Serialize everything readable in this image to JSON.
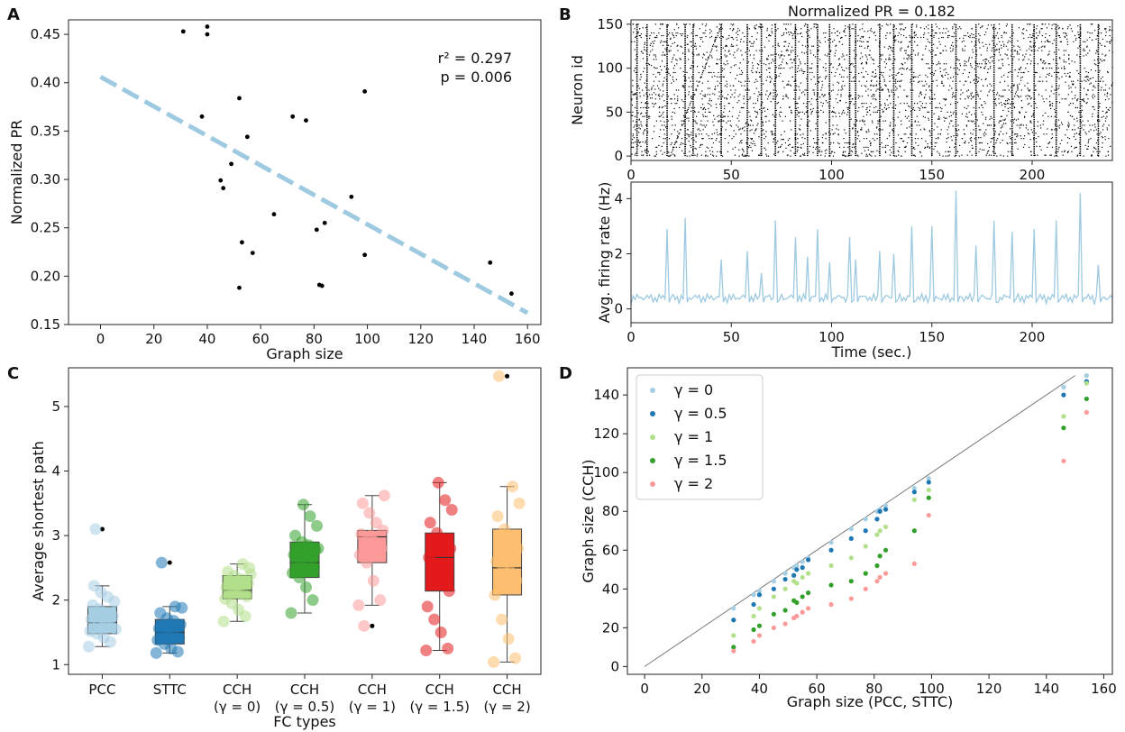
{
  "panels": {
    "a": "A",
    "b": "B",
    "c": "C",
    "d": "D"
  },
  "chart_data": [
    {
      "id": "A",
      "type": "scatter",
      "xlabel": "Graph size",
      "ylabel": "Normalized PR",
      "xlim": [
        -12,
        165
      ],
      "ylim": [
        0.15,
        0.465
      ],
      "xticks": [
        0,
        20,
        40,
        60,
        80,
        100,
        120,
        140,
        160
      ],
      "yticks": [
        0.15,
        0.2,
        0.25,
        0.3,
        0.35,
        0.4,
        0.45
      ],
      "annotation_r2": "r² = 0.297",
      "annotation_p": "p = 0.006",
      "fit_line": {
        "x": [
          0,
          160
        ],
        "y": [
          0.406,
          0.162
        ],
        "color": "#9ecae1"
      },
      "points": [
        [
          31,
          0.453
        ],
        [
          40,
          0.458
        ],
        [
          40,
          0.45
        ],
        [
          38,
          0.365
        ],
        [
          52,
          0.384
        ],
        [
          55,
          0.344
        ],
        [
          49,
          0.316
        ],
        [
          45,
          0.299
        ],
        [
          46,
          0.291
        ],
        [
          53,
          0.235
        ],
        [
          57,
          0.224
        ],
        [
          52,
          0.188
        ],
        [
          65,
          0.264
        ],
        [
          72,
          0.365
        ],
        [
          77,
          0.361
        ],
        [
          81,
          0.248
        ],
        [
          84,
          0.255
        ],
        [
          82,
          0.191
        ],
        [
          83,
          0.19
        ],
        [
          94,
          0.282
        ],
        [
          99,
          0.391
        ],
        [
          99,
          0.222
        ],
        [
          146,
          0.214
        ],
        [
          154,
          0.182
        ]
      ]
    },
    {
      "id": "B1",
      "type": "raster",
      "title": "Normalized PR = 0.182",
      "ylabel": "Neuron id",
      "xlim": [
        0,
        240
      ],
      "ylim": [
        -5,
        155
      ],
      "xticks": [
        0,
        50,
        100,
        150,
        200
      ],
      "yticks": [
        0,
        50,
        100,
        150
      ],
      "burst_times": [
        3,
        8,
        18,
        27,
        31,
        45,
        58,
        65,
        72,
        82,
        88,
        93,
        99,
        109,
        112,
        124,
        131,
        140,
        150,
        162,
        172,
        181,
        190,
        201,
        212,
        224,
        233
      ]
    },
    {
      "id": "B2",
      "type": "line",
      "xlabel": "Time (sec.)",
      "ylabel": "Avg. firing rate (Hz)",
      "xlim": [
        0,
        240
      ],
      "ylim": [
        -0.5,
        4.6
      ],
      "xticks": [
        0,
        50,
        100,
        150,
        200
      ],
      "yticks": [
        0,
        2,
        4
      ],
      "color": "#9ecae1",
      "peaks": [
        [
          18,
          2.9
        ],
        [
          27,
          3.3
        ],
        [
          45,
          1.8
        ],
        [
          58,
          2.1
        ],
        [
          65,
          1.3
        ],
        [
          72,
          3.2
        ],
        [
          82,
          2.6
        ],
        [
          88,
          1.9
        ],
        [
          93,
          2.9
        ],
        [
          99,
          1.7
        ],
        [
          109,
          2.6
        ],
        [
          112,
          1.8
        ],
        [
          124,
          2.1
        ],
        [
          131,
          2.0
        ],
        [
          140,
          3.0
        ],
        [
          150,
          3.0
        ],
        [
          162,
          4.3
        ],
        [
          172,
          2.3
        ],
        [
          181,
          3.2
        ],
        [
          190,
          2.8
        ],
        [
          201,
          2.9
        ],
        [
          212,
          3.2
        ],
        [
          224,
          4.2
        ],
        [
          233,
          1.6
        ]
      ]
    },
    {
      "id": "C",
      "type": "box",
      "ylabel": "Average shortest path",
      "xlabel": "FC types",
      "ylim": [
        0.85,
        5.6
      ],
      "yticks": [
        1,
        2,
        3,
        4,
        5
      ],
      "categories": [
        {
          "l1": "PCC",
          "l2": "",
          "color": "#a6cee3",
          "q1": 1.48,
          "med": 1.65,
          "q3": 1.9,
          "lo": 1.28,
          "hi": 2.22,
          "out": [
            3.1
          ],
          "pts": [
            1.28,
            1.35,
            1.42,
            1.48,
            1.52,
            1.58,
            1.62,
            1.66,
            1.7,
            1.75,
            1.8,
            1.86,
            1.92,
            1.98,
            2.05,
            2.12,
            2.22,
            1.55,
            1.6,
            1.72,
            3.1
          ]
        },
        {
          "l1": "STTC",
          "l2": "",
          "color": "#1f78b4",
          "q1": 1.32,
          "med": 1.5,
          "q3": 1.7,
          "lo": 1.18,
          "hi": 1.9,
          "out": [
            2.58
          ],
          "pts": [
            1.18,
            1.2,
            1.25,
            1.32,
            1.38,
            1.42,
            1.48,
            1.52,
            1.56,
            1.62,
            1.68,
            1.72,
            1.8,
            1.88,
            1.9,
            1.45,
            2.58
          ]
        },
        {
          "l1": "CCH",
          "l2": "(γ = 0)",
          "color": "#b2df8a",
          "q1": 2.02,
          "med": 2.15,
          "q3": 2.38,
          "lo": 1.67,
          "hi": 2.56,
          "out": [],
          "pts": [
            1.67,
            1.75,
            1.85,
            1.95,
            2.02,
            2.06,
            2.1,
            2.15,
            2.2,
            2.26,
            2.32,
            2.38,
            2.44,
            2.5,
            2.56,
            2.12,
            2.3,
            2.4
          ]
        },
        {
          "l1": "CCH",
          "l2": "(γ = 0.5)",
          "color": "#33a02c",
          "q1": 2.35,
          "med": 2.58,
          "q3": 2.9,
          "lo": 1.8,
          "hi": 3.48,
          "out": [],
          "pts": [
            1.8,
            2.0,
            2.2,
            2.35,
            2.42,
            2.5,
            2.58,
            2.64,
            2.7,
            2.78,
            2.85,
            2.9,
            3.0,
            3.15,
            3.3,
            3.48,
            2.55,
            2.8
          ]
        },
        {
          "l1": "CCH",
          "l2": "(γ = 1)",
          "color": "#fb9a99",
          "q1": 2.58,
          "med": 2.98,
          "q3": 3.08,
          "lo": 1.92,
          "hi": 3.62,
          "out": [
            1.6
          ],
          "pts": [
            1.92,
            2.0,
            2.3,
            2.58,
            2.7,
            2.8,
            2.9,
            2.98,
            3.02,
            3.08,
            3.2,
            3.35,
            3.5,
            3.62,
            2.85,
            3.0,
            1.6
          ]
        },
        {
          "l1": "CCH",
          "l2": "(γ = 1.5)",
          "color": "#e31a1c",
          "q1": 2.14,
          "med": 2.66,
          "q3": 3.04,
          "lo": 1.22,
          "hi": 3.82,
          "out": [],
          "pts": [
            1.22,
            1.25,
            1.5,
            1.7,
            1.9,
            2.14,
            2.3,
            2.5,
            2.66,
            2.8,
            2.95,
            3.04,
            3.2,
            3.4,
            3.55,
            3.82,
            2.6
          ]
        },
        {
          "l1": "CCH",
          "l2": "(γ = 2)",
          "color": "#fdbf6f",
          "q1": 2.08,
          "med": 2.5,
          "q3": 3.1,
          "lo": 1.04,
          "hi": 3.76,
          "out": [
            5.47
          ],
          "pts": [
            1.04,
            1.1,
            1.4,
            1.7,
            2.08,
            2.3,
            2.45,
            2.5,
            2.6,
            2.8,
            3.0,
            3.1,
            3.3,
            3.5,
            3.76,
            2.2,
            5.47
          ]
        }
      ]
    },
    {
      "id": "D",
      "type": "scatter",
      "xlabel": "Graph size (PCC, STTC)",
      "ylabel": "Graph size (CCH)",
      "xlim": [
        -6,
        163
      ],
      "ylim": [
        -4,
        154
      ],
      "xticks": [
        0,
        20,
        40,
        60,
        80,
        100,
        120,
        140,
        160
      ],
      "yticks": [
        0,
        20,
        40,
        60,
        80,
        100,
        120,
        140
      ],
      "identity_line": {
        "x": [
          0,
          150
        ],
        "y": [
          0,
          150
        ]
      },
      "x": [
        31,
        38,
        40,
        45,
        49,
        52,
        53,
        55,
        57,
        65,
        72,
        77,
        81,
        82,
        84,
        94,
        99,
        146,
        154
      ],
      "series": [
        {
          "name": "γ = 0",
          "color": "#a6cee3",
          "y": [
            30,
            37,
            39,
            44,
            48,
            51,
            52,
            54,
            56,
            64,
            71,
            76,
            80,
            81,
            83,
            92,
            97,
            144,
            150
          ]
        },
        {
          "name": "γ = 0.5",
          "color": "#1f78b4",
          "y": [
            24,
            32,
            37,
            40,
            45,
            47,
            50,
            51,
            55,
            60,
            66,
            70,
            76,
            80,
            81,
            90,
            95,
            140,
            147
          ]
        },
        {
          "name": "γ = 1",
          "color": "#b2df8a",
          "y": [
            16,
            26,
            30,
            36,
            40,
            44,
            43,
            46,
            48,
            52,
            56,
            62,
            68,
            70,
            72,
            86,
            91,
            129,
            146
          ]
        },
        {
          "name": "γ = 1.5",
          "color": "#33a02c",
          "y": [
            10,
            19,
            21,
            27,
            29,
            34,
            33,
            36,
            38,
            42,
            44,
            48,
            52,
            57,
            60,
            70,
            87,
            123,
            138
          ]
        },
        {
          "name": "γ = 2",
          "color": "#fb9a99",
          "y": [
            8,
            13,
            16,
            20,
            22,
            25,
            26,
            28,
            30,
            32,
            35,
            40,
            44,
            46,
            48,
            53,
            78,
            106,
            131
          ]
        }
      ]
    }
  ]
}
